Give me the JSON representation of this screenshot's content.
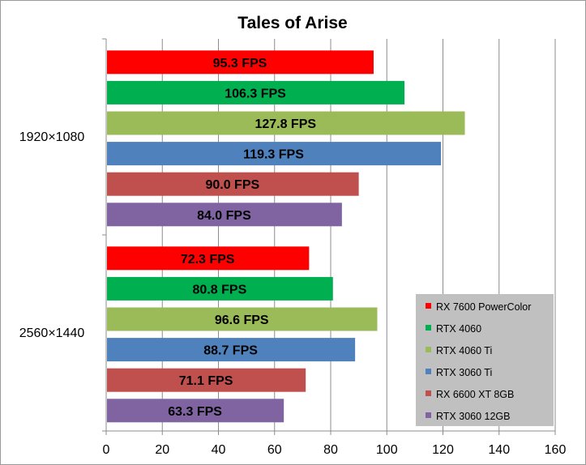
{
  "chart_data": {
    "type": "bar",
    "orientation": "horizontal",
    "title": "Tales of Arise",
    "xlabel": "",
    "ylabel": "",
    "xlim": [
      0,
      160
    ],
    "x_ticks": [
      "0",
      "20",
      "40",
      "60",
      "80",
      "100",
      "120",
      "140",
      "160"
    ],
    "grid": "vertical",
    "legend_position": "bottom-right",
    "categories": [
      "1920×1080",
      "2560×1440"
    ],
    "series": [
      {
        "name": "RX 7600 PowerColor",
        "color": "#ff0000",
        "values": [
          95.3,
          72.3
        ],
        "labels": [
          "95.3 FPS",
          "72.3 FPS"
        ]
      },
      {
        "name": "RTX 4060",
        "color": "#00b050",
        "values": [
          106.3,
          80.8
        ],
        "labels": [
          "106.3 FPS",
          "80.8 FPS"
        ]
      },
      {
        "name": "RTX 4060 Ti",
        "color": "#9bbb59",
        "values": [
          127.8,
          96.6
        ],
        "labels": [
          "127.8 FPS",
          "96.6 FPS"
        ]
      },
      {
        "name": "RTX 3060 Ti",
        "color": "#4f81bd",
        "values": [
          119.3,
          88.7
        ],
        "labels": [
          "119.3 FPS",
          "88.7 FPS"
        ]
      },
      {
        "name": "RX 6600 XT 8GB",
        "color": "#c0504d",
        "values": [
          90.0,
          71.1
        ],
        "labels": [
          "90.0 FPS",
          "71.1 FPS"
        ]
      },
      {
        "name": "RTX 3060 12GB",
        "color": "#8064a2",
        "values": [
          84.0,
          63.3
        ],
        "labels": [
          "84.0 FPS",
          "63.3 FPS"
        ]
      }
    ]
  }
}
